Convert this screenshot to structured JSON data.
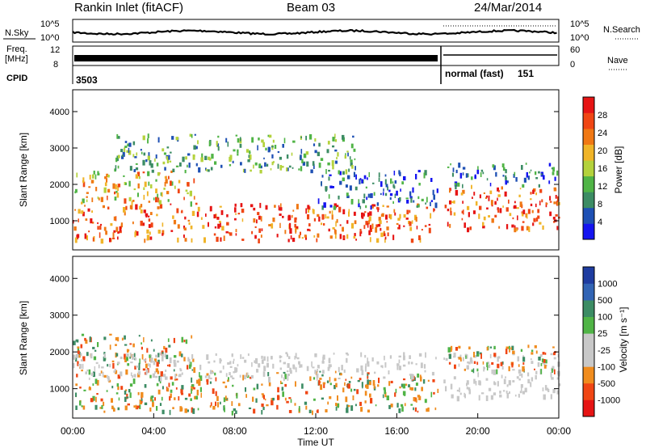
{
  "header": {
    "station": "Rankin Inlet (fitACF)",
    "beam": "Beam 03",
    "date": "24/Mar/2014"
  },
  "panel_labels": {
    "nsky": "N.Sky",
    "freq_line1": "Freq.",
    "freq_line2": "[MHz]",
    "cpid": "CPID",
    "nsearch": "N.Search",
    "nave": "Nave"
  },
  "status_axes": {
    "nsky_ticks": [
      "10^5",
      "10^0"
    ],
    "nsearch_ticks": [
      "10^5",
      "10^0"
    ],
    "freq_ticks": [
      "12",
      "8"
    ],
    "nave_ticks": [
      "60",
      "0"
    ]
  },
  "cpid_annotations": {
    "first": "3503",
    "second_mode": "normal (fast)",
    "second_id": "151"
  },
  "colors": {
    "power_scale": [
      "#1414f0",
      "#1e50b4",
      "#3c8c64",
      "#50b446",
      "#b4d23c",
      "#f0b428",
      "#f07814",
      "#f04614",
      "#e61414"
    ],
    "velocity_scale": [
      "#e61414",
      "#f04614",
      "#f08c1e",
      "#c8c8c8",
      "#c8c8c8",
      "#50b446",
      "#3c8c64",
      "#3264b4",
      "#1e3ca0"
    ]
  },
  "chart_data": [
    {
      "type": "heatmap",
      "title": "Power",
      "xlabel": "Time UT",
      "ylabel": "Slant Range [km]",
      "x_ticks": [
        "00:00",
        "04:00",
        "08:00",
        "12:00",
        "16:00",
        "20:00",
        "00:00"
      ],
      "xlim": [
        0,
        24
      ],
      "y_ticks": [
        1000,
        2000,
        3000,
        4000
      ],
      "ylim": [
        200,
        4600
      ],
      "colorbar": {
        "label": "Power [dB]",
        "ticks": [
          4,
          8,
          12,
          16,
          20,
          24,
          28
        ]
      },
      "bands": [
        {
          "t0": 0.0,
          "t1": 18.0,
          "r0": 500,
          "r1": 1500,
          "level": "strong"
        },
        {
          "t0": 0.0,
          "t1": 6.0,
          "r0": 1500,
          "r1": 2400,
          "level": "medium"
        },
        {
          "t0": 2.0,
          "t1": 14.0,
          "r0": 2400,
          "r1": 3400,
          "level": "weak"
        },
        {
          "t0": 12.0,
          "t1": 18.0,
          "r0": 1400,
          "r1": 2400,
          "level": "low"
        },
        {
          "t0": 18.3,
          "t1": 24.0,
          "r0": 800,
          "r1": 2000,
          "level": "strong"
        },
        {
          "t0": 18.3,
          "t1": 24.0,
          "r0": 2000,
          "r1": 2600,
          "level": "low"
        }
      ]
    },
    {
      "type": "heatmap",
      "title": "Velocity",
      "xlabel": "Time UT",
      "ylabel": "Slant Range [km]",
      "x_ticks": [
        "00:00",
        "04:00",
        "08:00",
        "12:00",
        "16:00",
        "20:00",
        "00:00"
      ],
      "xlim": [
        0,
        24
      ],
      "y_ticks": [
        1000,
        2000,
        3000,
        4000
      ],
      "ylim": [
        200,
        4600
      ],
      "colorbar": {
        "label": "Velocity [m s⁻¹]",
        "ticks": [
          1000,
          500,
          100,
          25,
          -25,
          -100,
          -500,
          -1000
        ]
      },
      "bands": [
        {
          "t0": 0.0,
          "t1": 18.0,
          "r0": 400,
          "r1": 1500,
          "level": "negative"
        },
        {
          "t0": 0.0,
          "t1": 6.0,
          "r0": 1500,
          "r1": 2500,
          "level": "mixed"
        },
        {
          "t0": 0.0,
          "t1": 18.0,
          "r0": 1300,
          "r1": 2000,
          "level": "ground"
        },
        {
          "t0": 18.3,
          "t1": 24.0,
          "r0": 800,
          "r1": 2000,
          "level": "ground"
        },
        {
          "t0": 18.3,
          "t1": 24.0,
          "r0": 1500,
          "r1": 2200,
          "level": "mixed"
        }
      ]
    }
  ]
}
